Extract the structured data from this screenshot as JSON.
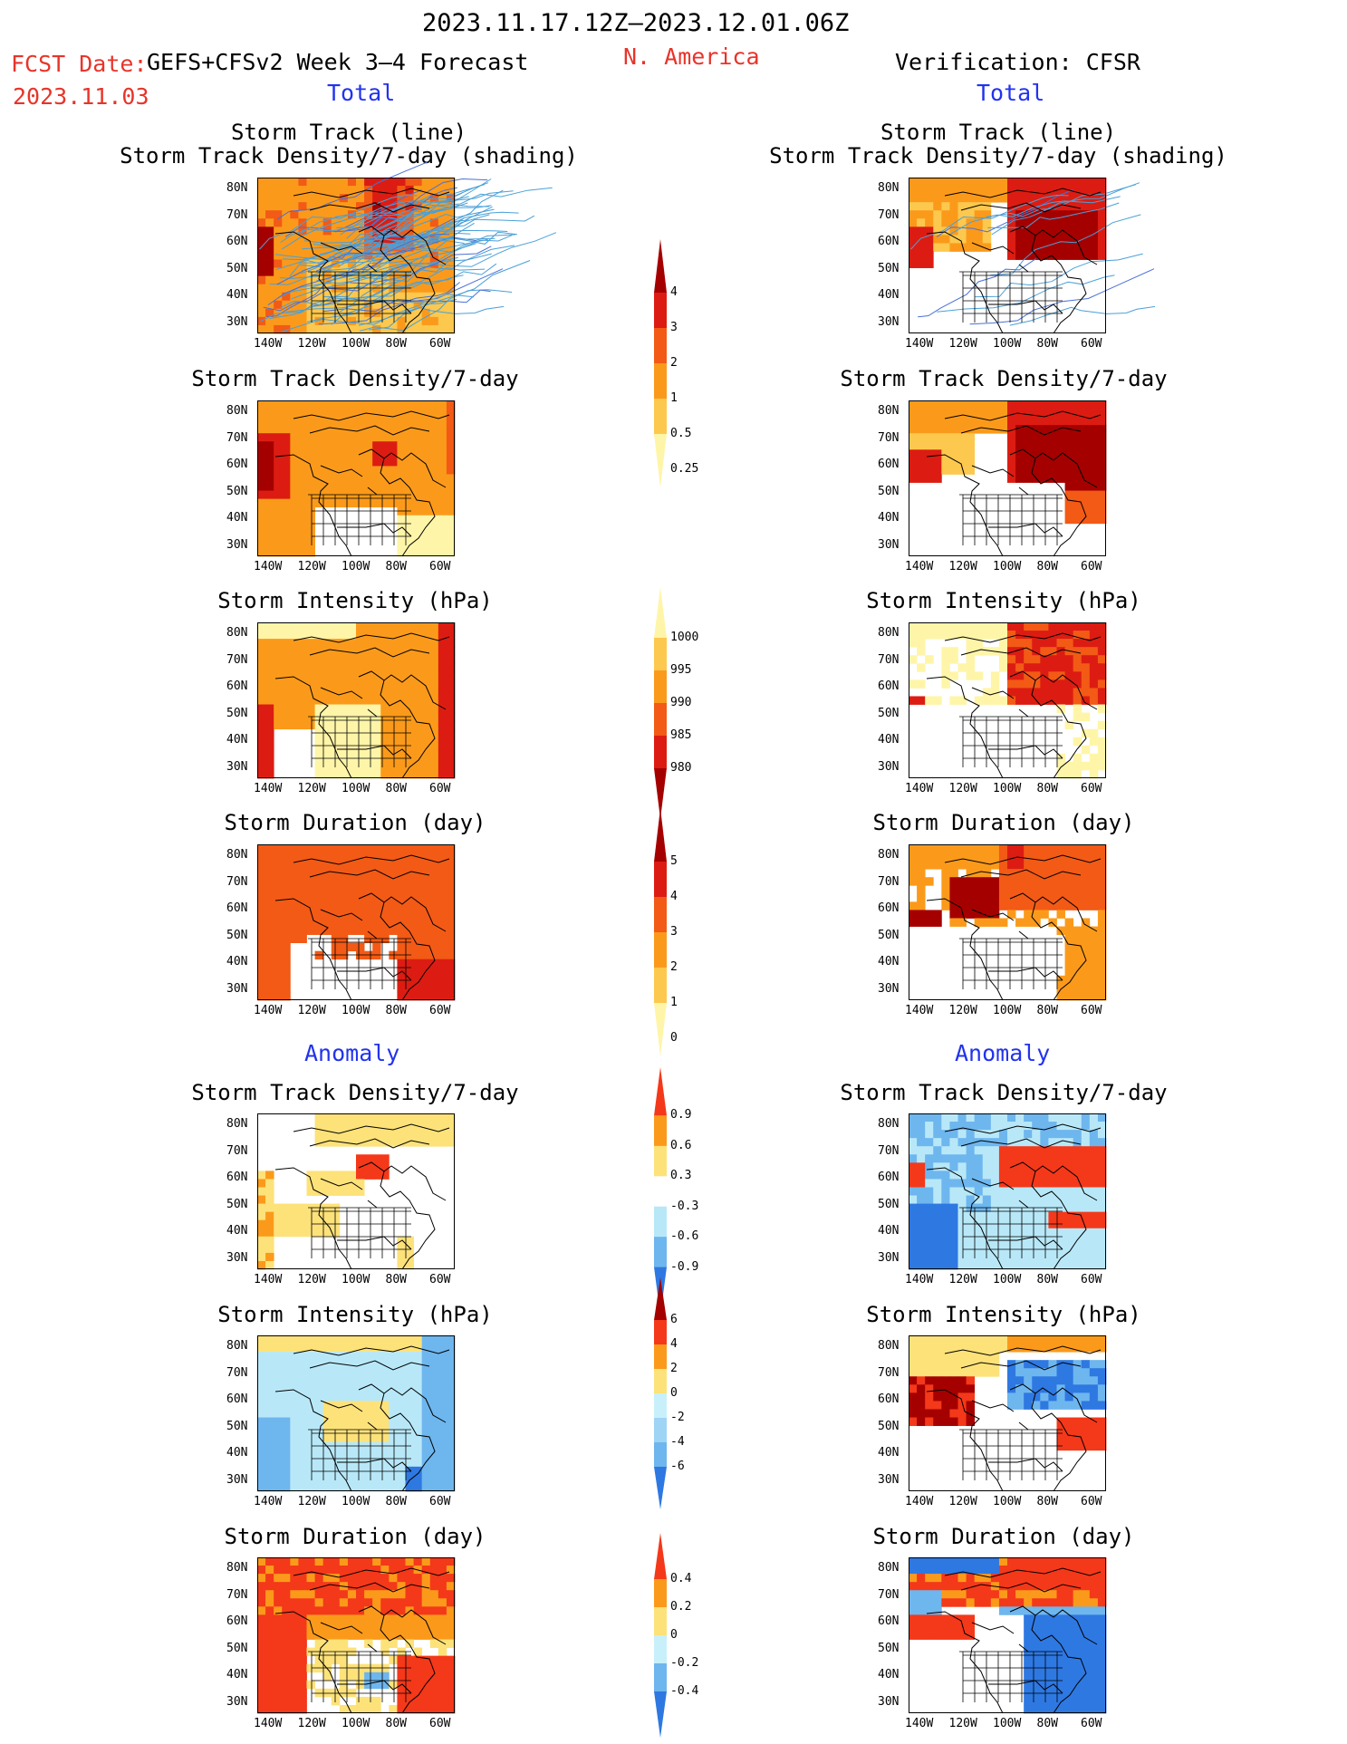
{
  "header": {
    "period": "2023.11.17.12Z–2023.12.01.06Z",
    "fcst_date_label": "FCST Date:",
    "fcst_date": "2023.11.03",
    "model": "GEFS+CFSv2 Week 3–4 Forecast",
    "region": "N. America",
    "verification": "Verification: CFSR"
  },
  "sections": {
    "total_left": "Total",
    "total_right": "Total",
    "anomaly_left": "Anomaly",
    "anomaly_right": "Anomaly"
  },
  "panel_titles": {
    "track_line": "Storm Track (line)",
    "track_shading": "Storm Track Density/7-day (shading)",
    "density": "Storm Track Density/7-day",
    "intensity": "Storm Intensity (hPa)",
    "duration": "Storm Duration (day)"
  },
  "axes": {
    "lat_ticks": [
      "80N",
      "70N",
      "60N",
      "50N",
      "40N",
      "30N"
    ],
    "lon_ticks": [
      "140W",
      "120W",
      "100W",
      "80W",
      "60W"
    ]
  },
  "colorbars": {
    "density_total": {
      "ticks": [
        "4",
        "3",
        "2",
        "1",
        "0.5",
        "0.25"
      ],
      "colors": [
        "#a50000",
        "#dc1c12",
        "#f25a16",
        "#fb9a1a",
        "#fdc84e",
        "#fff5a8"
      ]
    },
    "intensity_total": {
      "ticks": [
        "1000",
        "995",
        "990",
        "985",
        "980"
      ],
      "colors": [
        "#fff5a8",
        "#fdc84e",
        "#fb9a1a",
        "#f25a16",
        "#dc1c12",
        "#a50000"
      ]
    },
    "duration_total": {
      "ticks": [
        "5",
        "4",
        "3",
        "2",
        "1",
        "0"
      ],
      "colors": [
        "#a50000",
        "#dc1c12",
        "#f25a16",
        "#fb9a1a",
        "#fdc84e",
        "#fff5a8"
      ]
    },
    "density_anom": {
      "ticks": [
        "0.9",
        "0.6",
        "0.3",
        "-0.3",
        "-0.6",
        "-0.9"
      ],
      "colors": [
        "#f4381a",
        "#fb9a1a",
        "#fde27a",
        "#ffffff",
        "#b8e8f8",
        "#6eb6ee",
        "#2e78e2"
      ]
    },
    "intensity_anom": {
      "ticks": [
        "6",
        "4",
        "2",
        "0",
        "-2",
        "-4",
        "-6"
      ],
      "colors": [
        "#a50000",
        "#f4381a",
        "#fb9a1a",
        "#fde27a",
        "#c8f0fa",
        "#9ed4f4",
        "#6eb6ee",
        "#2e78e2"
      ]
    },
    "duration_anom": {
      "ticks": [
        "0.4",
        "0.2",
        "0",
        "-0.2",
        "-0.4"
      ],
      "colors": [
        "#f4381a",
        "#fb9a1a",
        "#fde27a",
        "#c8f0fa",
        "#6eb6ee",
        "#2e78e2"
      ]
    }
  }
}
